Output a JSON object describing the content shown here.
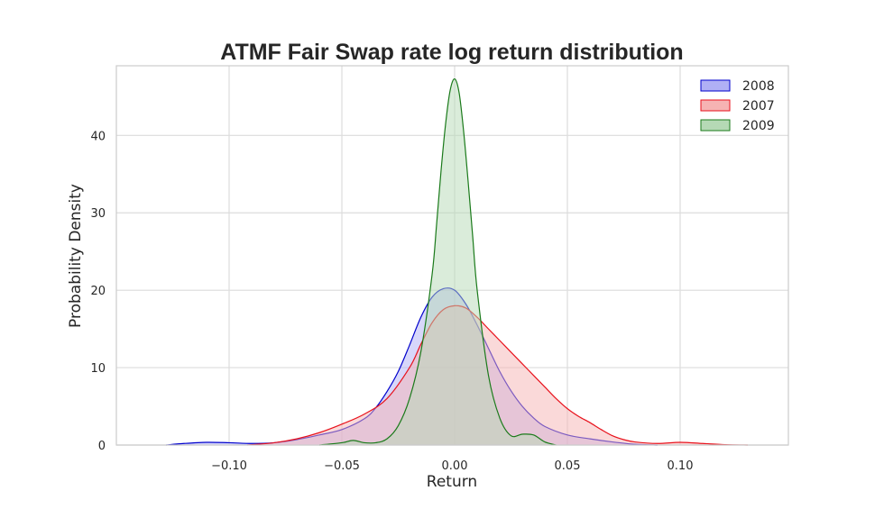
{
  "chart_data": {
    "type": "area",
    "title": "ATMF Fair Swap rate log return distribution",
    "xlabel": "Return",
    "ylabel": "Probability Density",
    "xlim": [
      -0.15,
      0.148
    ],
    "ylim": [
      0,
      49
    ],
    "xticks": [
      -0.1,
      -0.05,
      0.0,
      0.05,
      0.1
    ],
    "xtick_labels": [
      "−0.10",
      "−0.05",
      "0.00",
      "0.05",
      "0.10"
    ],
    "yticks": [
      0,
      10,
      20,
      30,
      40
    ],
    "ytick_labels": [
      "0",
      "10",
      "20",
      "30",
      "40"
    ],
    "grid": true,
    "legend_position": "top-right",
    "series": [
      {
        "name": "2008",
        "color": "#0000cc",
        "fill": "#b0b0f5",
        "x": [
          -0.128,
          -0.12,
          -0.11,
          -0.1,
          -0.09,
          -0.08,
          -0.07,
          -0.06,
          -0.05,
          -0.04,
          -0.035,
          -0.03,
          -0.025,
          -0.02,
          -0.015,
          -0.01,
          -0.005,
          0.0,
          0.005,
          0.01,
          0.015,
          0.02,
          0.025,
          0.03,
          0.035,
          0.04,
          0.05,
          0.06,
          0.07,
          0.08,
          0.09
        ],
        "y": [
          0,
          0.2,
          0.35,
          0.3,
          0.2,
          0.3,
          0.7,
          1.3,
          2.0,
          3.4,
          4.8,
          6.9,
          9.5,
          12.9,
          16.5,
          19.1,
          20.2,
          20.0,
          18.2,
          15.5,
          12.5,
          9.5,
          7.0,
          5.0,
          3.5,
          2.4,
          1.3,
          0.8,
          0.4,
          0.1,
          0
        ]
      },
      {
        "name": "2007",
        "color": "#e8121c",
        "fill": "#f6b3b3",
        "x": [
          -0.092,
          -0.08,
          -0.07,
          -0.06,
          -0.05,
          -0.04,
          -0.03,
          -0.02,
          -0.015,
          -0.01,
          -0.005,
          0.0,
          0.005,
          0.01,
          0.015,
          0.02,
          0.025,
          0.03,
          0.035,
          0.04,
          0.045,
          0.05,
          0.055,
          0.06,
          0.065,
          0.07,
          0.075,
          0.08,
          0.09,
          0.1,
          0.11,
          0.12,
          0.13
        ],
        "y": [
          0,
          0.3,
          0.8,
          1.6,
          2.7,
          4.0,
          6.0,
          10.0,
          13.0,
          15.8,
          17.5,
          18.0,
          17.7,
          16.5,
          15.0,
          13.5,
          12.0,
          10.5,
          9.0,
          7.5,
          6.0,
          4.7,
          3.7,
          2.9,
          2.0,
          1.2,
          0.7,
          0.4,
          0.2,
          0.35,
          0.2,
          0.05,
          0
        ]
      },
      {
        "name": "2009",
        "color": "#1a7a1a",
        "fill": "#b5d9b5",
        "x": [
          -0.06,
          -0.05,
          -0.045,
          -0.04,
          -0.035,
          -0.03,
          -0.025,
          -0.02,
          -0.015,
          -0.01,
          -0.008,
          -0.006,
          -0.004,
          -0.002,
          0.0,
          0.002,
          0.004,
          0.006,
          0.008,
          0.01,
          0.015,
          0.02,
          0.025,
          0.03,
          0.035,
          0.04,
          0.045
        ],
        "y": [
          0,
          0.3,
          0.6,
          0.3,
          0.3,
          0.8,
          2.5,
          6.0,
          12.0,
          22.0,
          28.5,
          35.5,
          41.5,
          45.8,
          47.3,
          45.5,
          40.5,
          34.0,
          27.0,
          20.0,
          9.0,
          3.5,
          1.2,
          1.4,
          1.3,
          0.4,
          0
        ]
      }
    ]
  }
}
